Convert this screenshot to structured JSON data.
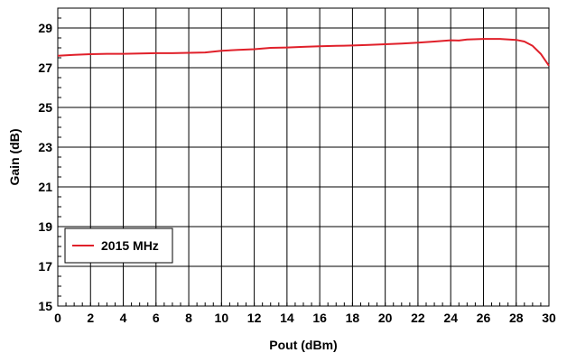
{
  "chart_data": {
    "type": "line",
    "title": "",
    "xlabel": "Pout (dBm)",
    "ylabel": "Gain (dB)",
    "xlim": [
      0,
      30
    ],
    "ylim": [
      15,
      30
    ],
    "xticks": [
      "0",
      "2",
      "4",
      "6",
      "8",
      "10",
      "12",
      "14",
      "16",
      "18",
      "20",
      "22",
      "24",
      "26",
      "28",
      "30"
    ],
    "yticks": [
      "15",
      "17",
      "19",
      "21",
      "23",
      "25",
      "27",
      "29"
    ],
    "grid": true,
    "legend_position": "bottom-left",
    "series": [
      {
        "name": "2015 MHz",
        "color": "#e0202a",
        "x": [
          0,
          1,
          2,
          3,
          4,
          5,
          6,
          7,
          8,
          9,
          10,
          11,
          12,
          13,
          14,
          15,
          16,
          17,
          18,
          19,
          20,
          21,
          22,
          23,
          24,
          24.5,
          25,
          26,
          27,
          28,
          28.5,
          29,
          29.5,
          30
        ],
        "y": [
          27.6,
          27.65,
          27.68,
          27.7,
          27.7,
          27.72,
          27.73,
          27.73,
          27.75,
          27.77,
          27.85,
          27.9,
          27.93,
          28.0,
          28.02,
          28.05,
          28.08,
          28.1,
          28.12,
          28.15,
          28.18,
          28.22,
          28.26,
          28.32,
          28.38,
          28.37,
          28.42,
          28.45,
          28.45,
          28.4,
          28.32,
          28.1,
          27.7,
          27.1
        ]
      }
    ]
  }
}
